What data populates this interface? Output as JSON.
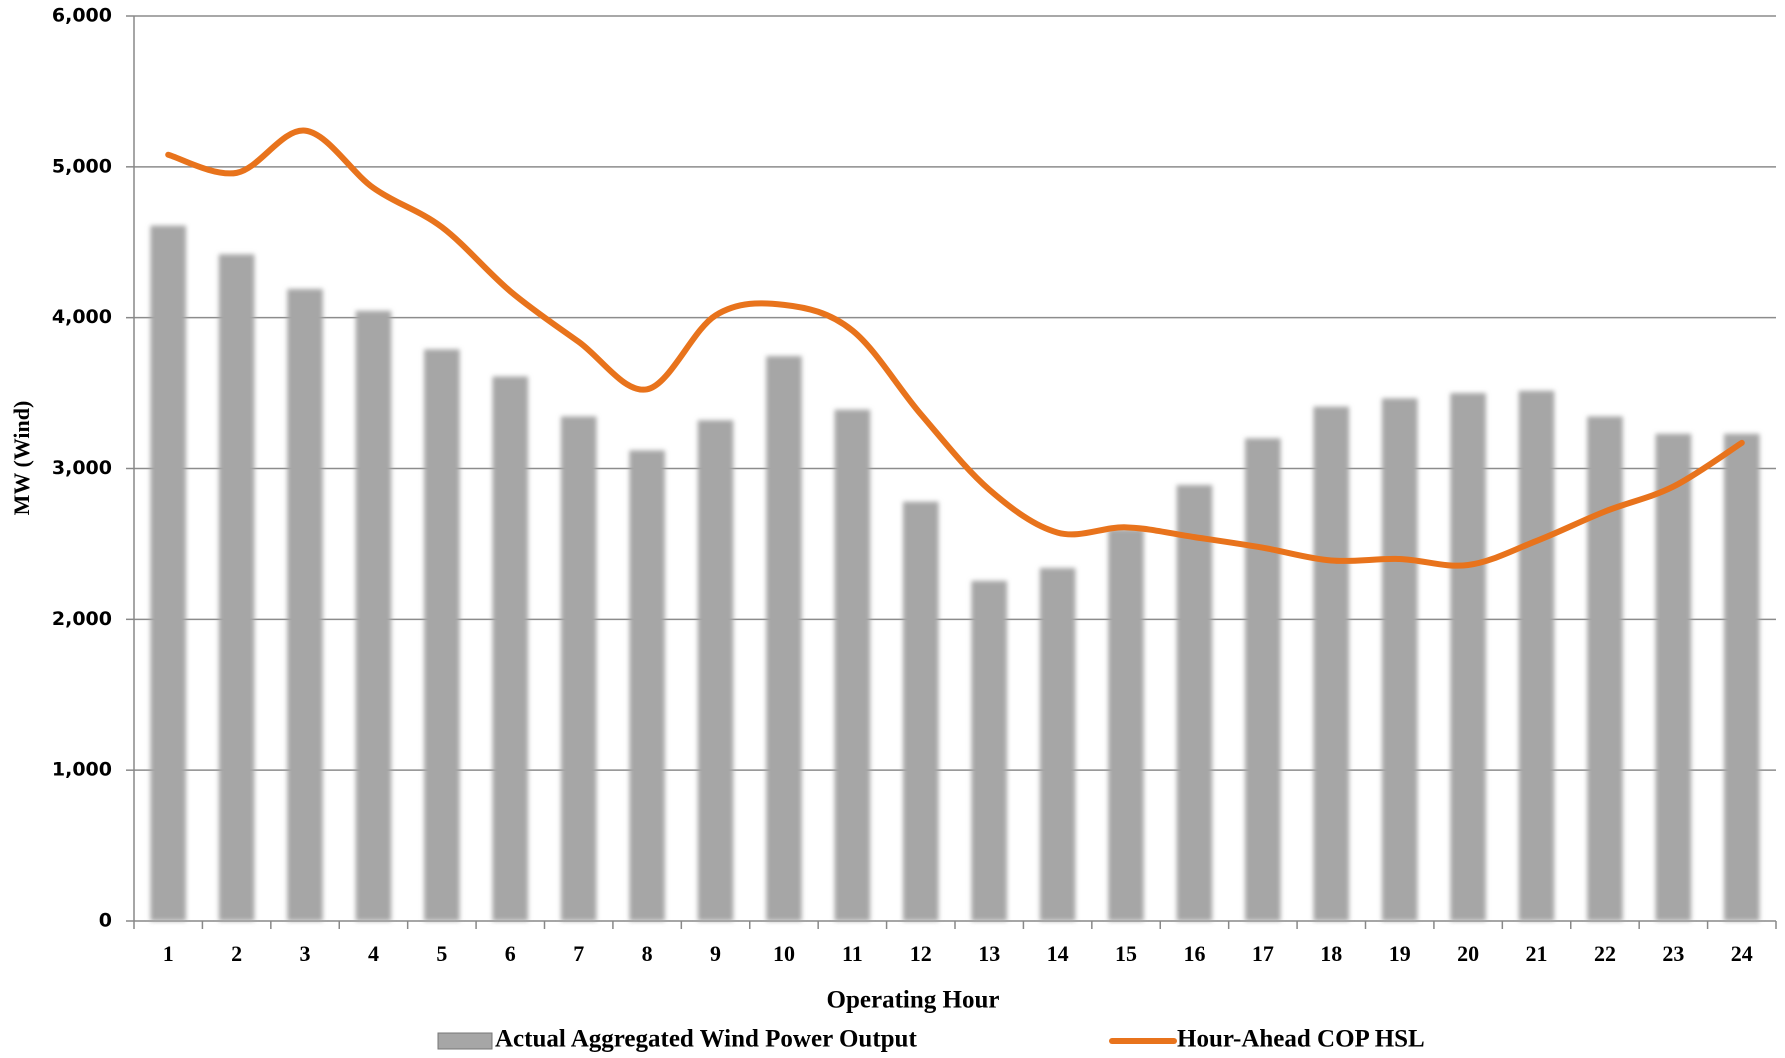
{
  "chart_data": {
    "type": "bar-line",
    "x_label": "Operating Hour",
    "y_label": "MW (Wind)",
    "categories": [
      "1",
      "2",
      "3",
      "4",
      "5",
      "6",
      "7",
      "8",
      "9",
      "10",
      "11",
      "12",
      "13",
      "14",
      "15",
      "16",
      "17",
      "18",
      "19",
      "20",
      "21",
      "22",
      "23",
      "24"
    ],
    "series": [
      {
        "name": "Actual Aggregated Wind Power Output",
        "type": "bar",
        "color": "#a6a6a6",
        "values": [
          4610,
          4420,
          4190,
          4045,
          3790,
          3610,
          3345,
          3120,
          3320,
          3745,
          3390,
          2780,
          2255,
          2340,
          2600,
          2890,
          3200,
          3410,
          3465,
          3500,
          3515,
          3345,
          3230,
          3230
        ]
      },
      {
        "name": "Hour-Ahead COP HSL",
        "type": "line",
        "color": "#e8731c",
        "values": [
          5080,
          4960,
          5240,
          4860,
          4600,
          4175,
          3840,
          3525,
          4015,
          4085,
          3915,
          3360,
          2860,
          2575,
          2610,
          2545,
          2475,
          2390,
          2400,
          2360,
          2520,
          2715,
          2880,
          3170
        ]
      }
    ],
    "ylim": [
      0,
      6000
    ],
    "yticks": [
      0,
      {
        "value": 1000,
        "label": "1,000"
      },
      {
        "value": 2000,
        "label": "2,000"
      },
      {
        "value": 3000,
        "label": "3,000"
      },
      {
        "value": 4000,
        "label": "4,000"
      },
      {
        "value": 5000,
        "label": "5,000"
      },
      {
        "value": 6000,
        "label": "6,000"
      }
    ],
    "grid": true,
    "legend": "bottom"
  }
}
